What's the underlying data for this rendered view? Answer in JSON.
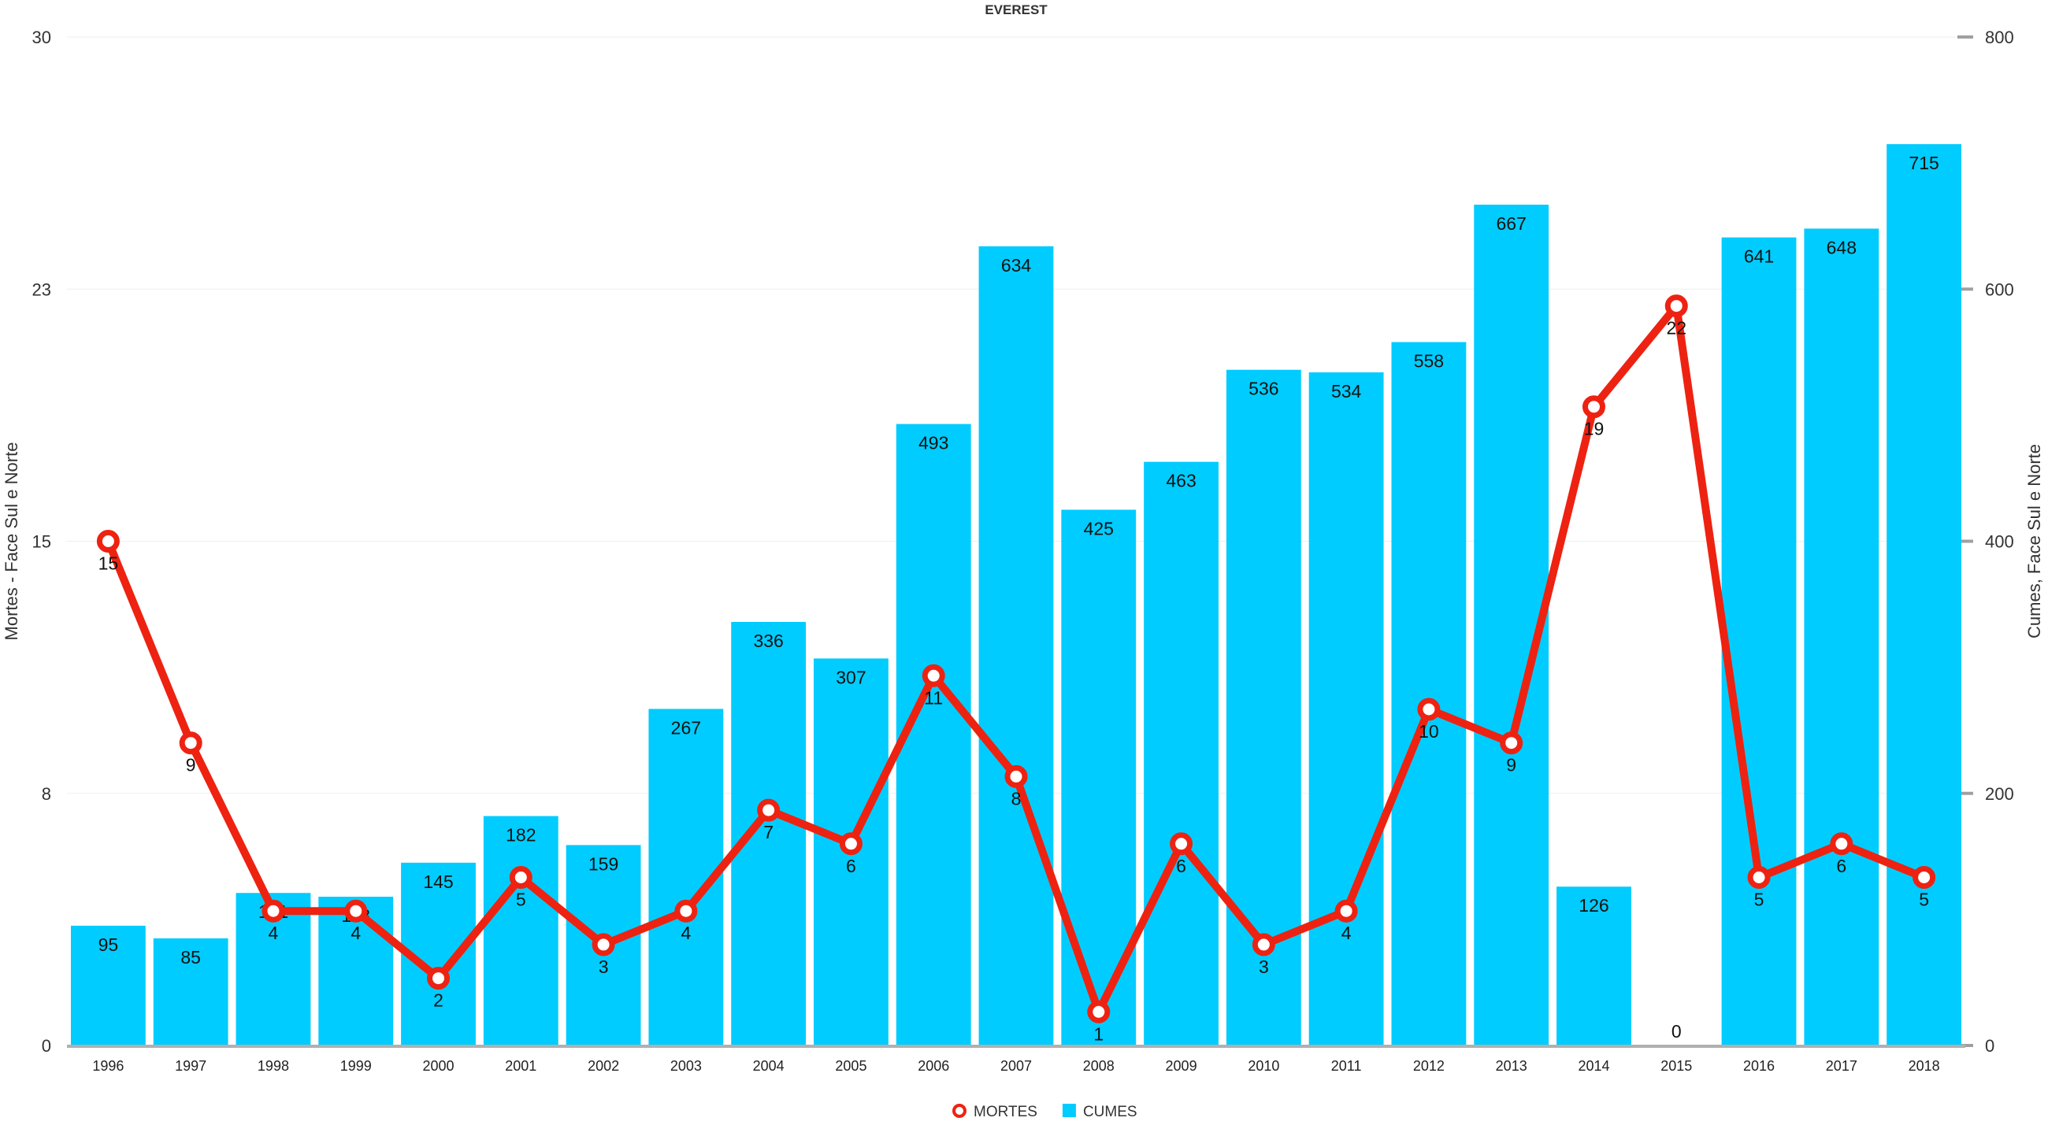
{
  "chart_data": {
    "type": "bar",
    "title": "EVEREST",
    "categories": [
      "1996",
      "1997",
      "1998",
      "1999",
      "2000",
      "2001",
      "2002",
      "2003",
      "2004",
      "2005",
      "2006",
      "2007",
      "2008",
      "2009",
      "2010",
      "2011",
      "2012",
      "2013",
      "2014",
      "2015",
      "2016",
      "2017",
      "2018"
    ],
    "series": [
      {
        "name": "CUMES",
        "type": "bar",
        "axis": "right",
        "color": "#00ccff",
        "values": [
          95,
          85,
          121,
          118,
          145,
          182,
          159,
          267,
          336,
          307,
          493,
          634,
          425,
          463,
          536,
          534,
          558,
          667,
          126,
          0,
          641,
          648,
          715
        ]
      },
      {
        "name": "MORTES",
        "type": "line",
        "axis": "left",
        "color": "#ee2211",
        "values": [
          15,
          9,
          4,
          4,
          2,
          5,
          3,
          4,
          7,
          6,
          11,
          8,
          1,
          6,
          3,
          4,
          10,
          9,
          19,
          22,
          5,
          6,
          5
        ]
      }
    ],
    "left_axis": {
      "label": "Mortes - Face Sul e Norte",
      "range": [
        0,
        30
      ],
      "ticks": [
        "0",
        "8",
        "15",
        "23",
        "30"
      ]
    },
    "right_axis": {
      "label": "Cumes, Face Sul e Norte",
      "range": [
        0,
        800
      ],
      "ticks": [
        "0",
        "200",
        "400",
        "600",
        "800"
      ]
    },
    "grid": true,
    "legend": {
      "position": "bottom-center",
      "items": [
        {
          "name": "MORTES",
          "symbol": "line-circle",
          "color": "#ee2211"
        },
        {
          "name": "CUMES",
          "symbol": "square",
          "color": "#00ccff"
        }
      ]
    }
  }
}
